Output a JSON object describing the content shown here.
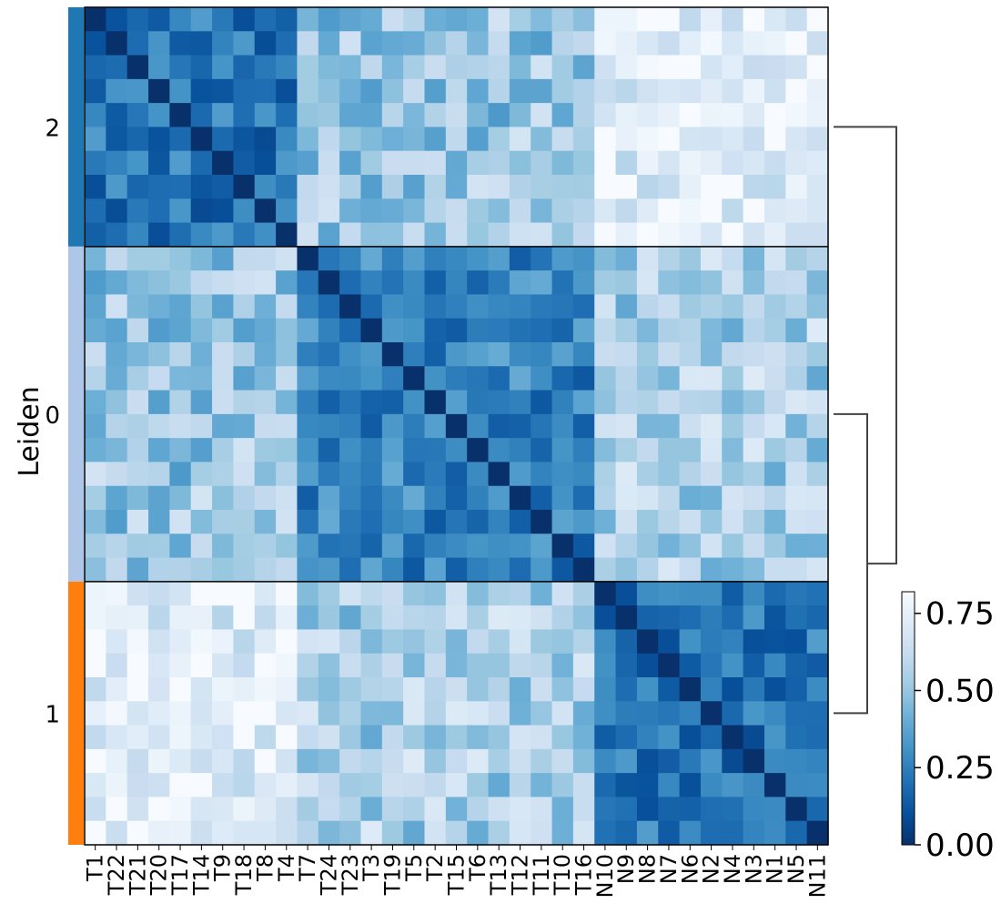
{
  "chart_data": {
    "type": "heatmap",
    "title": "",
    "ylabel": "Leiden",
    "labels": [
      "T1",
      "T22",
      "T21",
      "T20",
      "T17",
      "T14",
      "T9",
      "T18",
      "T8",
      "T4",
      "T7",
      "T24",
      "T23",
      "T3",
      "T19",
      "T5",
      "T2",
      "T15",
      "T6",
      "T13",
      "T12",
      "T11",
      "T10",
      "T16",
      "N10",
      "N9",
      "N8",
      "N7",
      "N6",
      "N2",
      "N4",
      "N3",
      "N1",
      "N5",
      "N11"
    ],
    "groups": [
      {
        "name": "2",
        "start": 0,
        "end": 10,
        "color": "#1f77b4"
      },
      {
        "name": "0",
        "start": 10,
        "end": 24,
        "color": "#aec7e8"
      },
      {
        "name": "1",
        "start": 24,
        "end": 35,
        "color": "#ff7f0e"
      }
    ],
    "colorbar": {
      "min": 0.0,
      "max": 0.82,
      "ticks": [
        "0.00",
        "0.25",
        "0.50",
        "0.75"
      ],
      "tick_values": [
        0.0,
        0.25,
        0.5,
        0.75
      ]
    },
    "colormap_stops": [
      "#08306b",
      "#08519c",
      "#2171b5",
      "#4292c6",
      "#6baed6",
      "#9ecae1",
      "#c6dbef",
      "#deebf7",
      "#f7fbff"
    ],
    "within_group_mean": {
      "2": 0.22,
      "0": 0.26,
      "1": 0.22
    },
    "between_group_mean": {
      "2-0": 0.5,
      "2-1": 0.74,
      "0-1": 0.55
    },
    "dendrogram": {
      "leaves": [
        "2",
        "0",
        "1"
      ],
      "merges": [
        [
          "0",
          "1"
        ],
        [
          "2",
          "0-1"
        ]
      ]
    }
  }
}
